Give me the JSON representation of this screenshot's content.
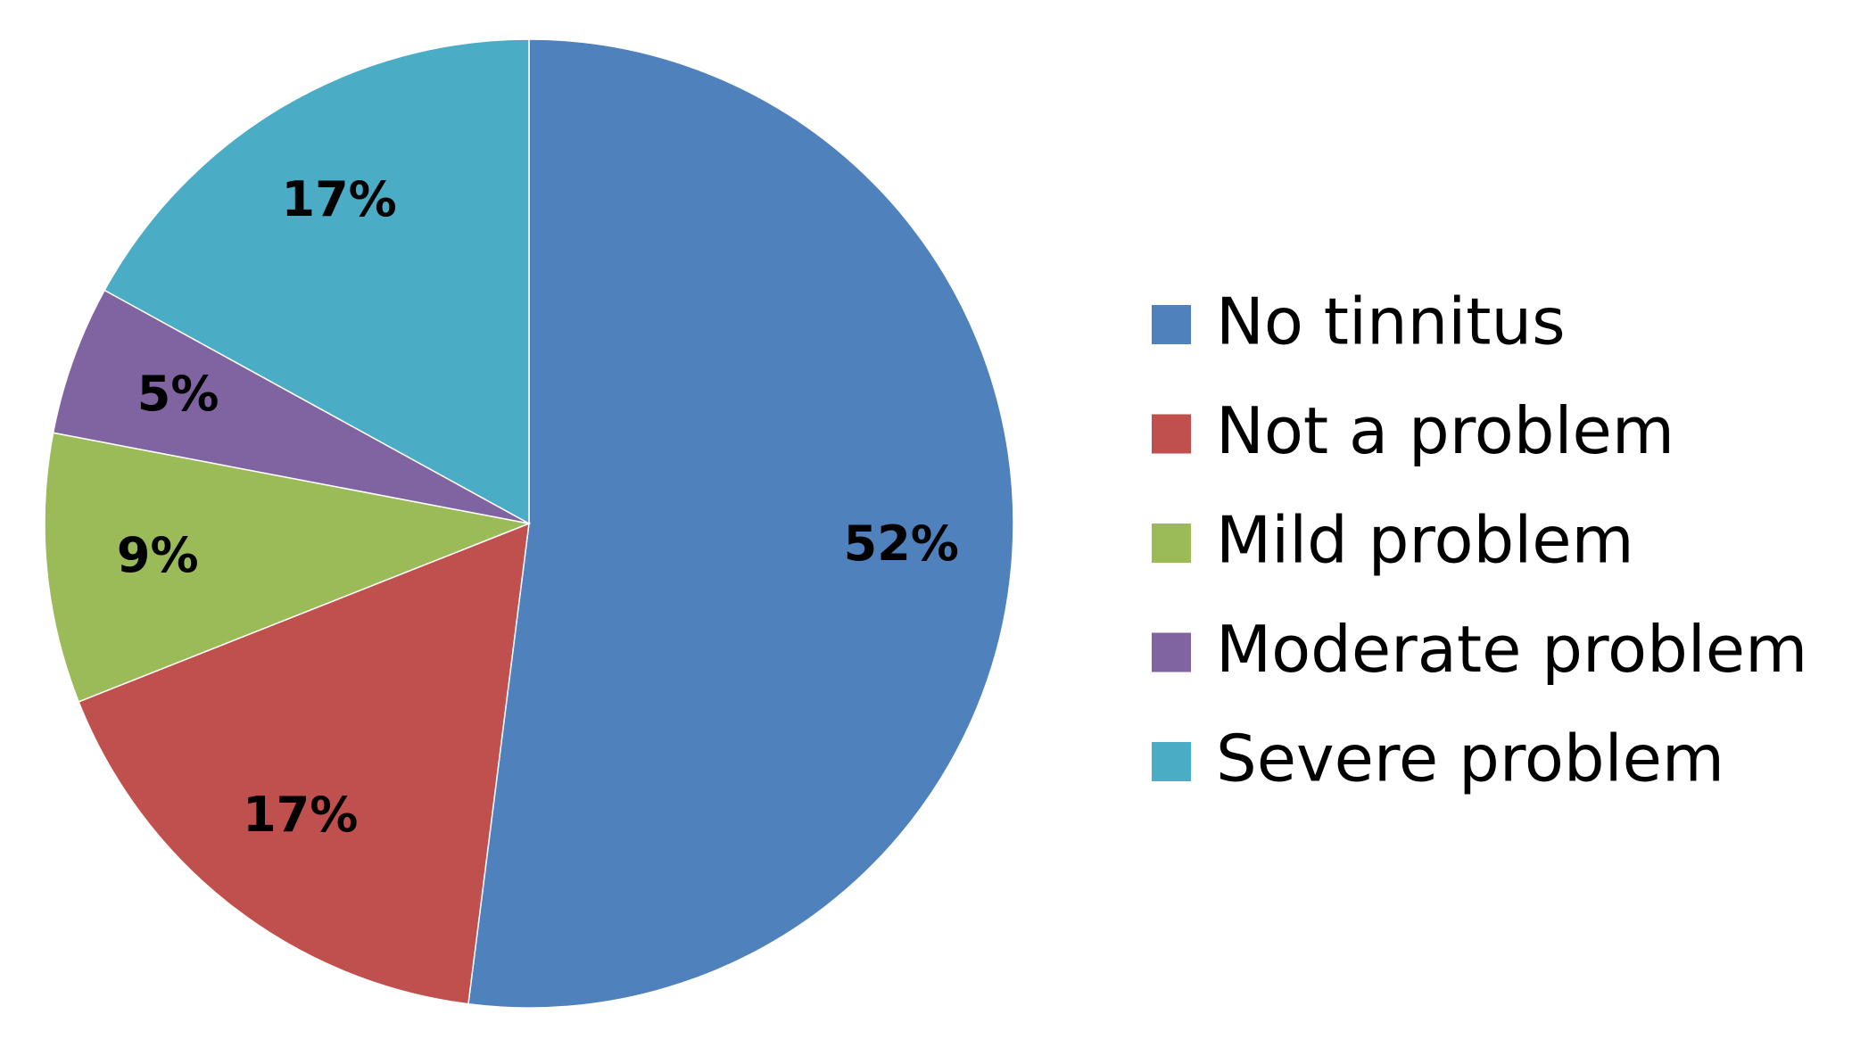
{
  "chart_data": {
    "type": "pie",
    "categories": [
      "No tinnitus",
      "Not a problem",
      "Mild problem",
      "Moderate problem",
      "Severe problem"
    ],
    "values": [
      52,
      17,
      9,
      5,
      17
    ],
    "value_labels": [
      "52%",
      "17%",
      "9%",
      "5%",
      "17%"
    ],
    "colors": [
      "#4f81bd",
      "#c0504d",
      "#9bbb59",
      "#8064a2",
      "#4bacc6"
    ],
    "legend": "right"
  }
}
